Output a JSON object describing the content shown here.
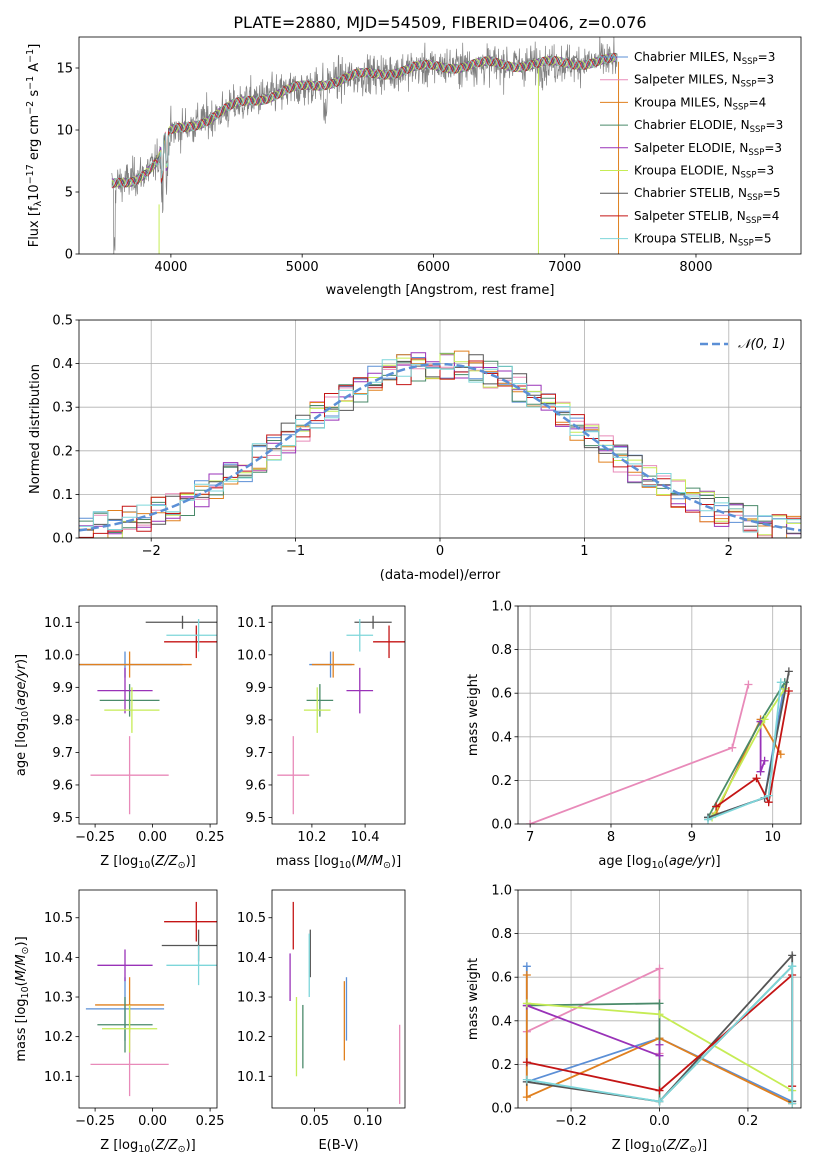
{
  "colors": {
    "chabrier_miles": "#5b8fd6",
    "salpeter_miles": "#e88ab9",
    "kroupa_miles": "#e0801f",
    "chabrier_elodie": "#4a8a6a",
    "salpeter_elodie": "#9932b8",
    "kroupa_elodie": "#c6ec55",
    "chabrier_stelib": "#555555",
    "salpeter_stelib": "#c41515",
    "kroupa_stelib": "#7ed6da",
    "gray_spectrum": "#808080",
    "normal_curve": "#5b8fd6"
  },
  "chart_data": [
    {
      "id": "spectrum",
      "type": "line",
      "title": "PLATE=2880, MJD=54509, FIBERID=0406, z=0.076",
      "xlabel": "wavelength [Angstrom, rest frame]",
      "ylabel": "Flux [f_λ 10⁻¹⁷ erg cm⁻² s⁻¹ A⁻¹]",
      "xlim": [
        3300,
        8800
      ],
      "ylim": [
        0,
        17.5
      ],
      "xticks": [
        "4000",
        "5000",
        "6000",
        "7000",
        "8000"
      ],
      "yticks": [
        "0",
        "5",
        "10",
        "15"
      ],
      "grid": false,
      "legend_position": "top-right",
      "continuum": {
        "x": [
          3550,
          3700,
          3800,
          3900,
          3950,
          4000,
          4100,
          4200,
          4300,
          4400,
          4500,
          4600,
          4800,
          5000,
          5200,
          5400,
          5600,
          5800,
          6000,
          6200,
          6400,
          6600,
          6800,
          7000,
          7200,
          7400
        ],
        "y": [
          5.5,
          6.0,
          6.6,
          7.4,
          9.1,
          9.8,
          10.2,
          10.6,
          11.0,
          11.5,
          12.0,
          12.4,
          12.9,
          13.4,
          13.9,
          14.3,
          14.6,
          14.9,
          15.1,
          15.2,
          15.3,
          15.3,
          15.3,
          15.4,
          15.5,
          15.6
        ]
      },
      "series": [
        {
          "name": "Chabrier MILES, N_SSP=3",
          "label": "Chabrier MILES, N",
          "sub": "SSP",
          "suffix": "=3"
        },
        {
          "name": "Salpeter MILES, N_SSP=3",
          "label": "Salpeter MILES, N",
          "sub": "SSP",
          "suffix": "=3"
        },
        {
          "name": "Kroupa MILES, N_SSP=4",
          "label": "Kroupa MILES, N",
          "sub": "SSP",
          "suffix": "=4"
        },
        {
          "name": "Chabrier ELODIE, N_SSP=3",
          "label": "Chabrier ELODIE, N",
          "sub": "SSP",
          "suffix": "=3"
        },
        {
          "name": "Salpeter ELODIE, N_SSP=3",
          "label": "Salpeter ELODIE, N",
          "sub": "SSP",
          "suffix": "=3"
        },
        {
          "name": "Kroupa ELODIE, N_SSP=3",
          "label": "Kroupa ELODIE, N",
          "sub": "SSP",
          "suffix": "=3"
        },
        {
          "name": "Chabrier STELIB, N_SSP=5",
          "label": "Chabrier STELIB, N",
          "sub": "SSP",
          "suffix": "=5"
        },
        {
          "name": "Salpeter STELIB, N_SSP=4",
          "label": "Salpeter STELIB, N",
          "sub": "SSP",
          "suffix": "=4"
        },
        {
          "name": "Kroupa STELIB, N_SSP=5",
          "label": "Kroupa STELIB, N",
          "sub": "SSP",
          "suffix": "=5"
        }
      ]
    },
    {
      "id": "residuals",
      "type": "line",
      "xlabel": "(data-model)/error",
      "ylabel": "Normed distribution",
      "xlim": [
        -2.5,
        2.5
      ],
      "ylim": [
        0,
        0.5
      ],
      "xticks": [
        "−2",
        "−1",
        "0",
        "1",
        "2"
      ],
      "yticks": [
        "0.0",
        "0.1",
        "0.2",
        "0.3",
        "0.4",
        "0.5"
      ],
      "grid": true,
      "legend_position": "top-right",
      "legend_label": "N(0,1)",
      "bins": 50,
      "model": "normal, mean 0, sigma 1"
    },
    {
      "id": "age_vs_Z",
      "type": "scatter",
      "xlabel": "Z [log₁₀(Z/Z☉)]",
      "ylabel": "age  [log₁₀(age/yr)]",
      "xlim": [
        -0.32,
        0.28
      ],
      "ylim": [
        9.48,
        10.15
      ],
      "xticks": [
        "−0.25",
        "0.00",
        "0.25"
      ],
      "yticks": [
        "9.5",
        "9.6",
        "9.7",
        "9.8",
        "9.9",
        "10.0",
        "10.1"
      ],
      "points": [
        {
          "x": -0.12,
          "y": 9.97,
          "xerr": 0.25,
          "yerr": 0.04
        },
        {
          "x": -0.1,
          "y": 9.63,
          "xerr": 0.17,
          "yerr": 0.12
        },
        {
          "x": -0.1,
          "y": 9.97,
          "xerr": 0.27,
          "yerr": 0.04
        },
        {
          "x": -0.1,
          "y": 9.86,
          "xerr": 0.13,
          "yerr": 0.05
        },
        {
          "x": -0.12,
          "y": 9.89,
          "xerr": 0.12,
          "yerr": 0.07
        },
        {
          "x": -0.09,
          "y": 9.83,
          "xerr": 0.12,
          "yerr": 0.07
        },
        {
          "x": 0.13,
          "y": 10.1,
          "xerr": 0.16,
          "yerr": 0.02
        },
        {
          "x": 0.19,
          "y": 10.04,
          "xerr": 0.14,
          "yerr": 0.05
        },
        {
          "x": 0.2,
          "y": 10.06,
          "xerr": 0.14,
          "yerr": 0.05
        }
      ]
    },
    {
      "id": "age_vs_mass",
      "type": "scatter",
      "xlabel": "mass [log₁₀(M/M☉)]",
      "ylabel": "",
      "xlim": [
        10.05,
        10.55
      ],
      "ylim": [
        9.48,
        10.15
      ],
      "xticks": [
        "10.2",
        "10.4"
      ],
      "yticks": [
        "9.5",
        "9.6",
        "9.7",
        "9.8",
        "9.9",
        "10.0",
        "10.1"
      ],
      "points": [
        {
          "x": 10.27,
          "y": 9.97,
          "xerr": 0.08,
          "yerr": 0.04
        },
        {
          "x": 10.13,
          "y": 9.63,
          "xerr": 0.06,
          "yerr": 0.12
        },
        {
          "x": 10.28,
          "y": 9.97,
          "xerr": 0.08,
          "yerr": 0.04
        },
        {
          "x": 10.23,
          "y": 9.86,
          "xerr": 0.05,
          "yerr": 0.05
        },
        {
          "x": 10.38,
          "y": 9.89,
          "xerr": 0.05,
          "yerr": 0.07
        },
        {
          "x": 10.22,
          "y": 9.83,
          "xerr": 0.05,
          "yerr": 0.07
        },
        {
          "x": 10.43,
          "y": 10.1,
          "xerr": 0.07,
          "yerr": 0.02
        },
        {
          "x": 10.49,
          "y": 10.04,
          "xerr": 0.06,
          "yerr": 0.05
        },
        {
          "x": 10.38,
          "y": 10.06,
          "xerr": 0.05,
          "yerr": 0.05
        }
      ]
    },
    {
      "id": "weight_vs_age",
      "type": "line",
      "xlabel": "age  [log₁₀(age/yr)]",
      "ylabel": "mass weight",
      "xlim": [
        6.85,
        10.35
      ],
      "ylim": [
        0,
        1
      ],
      "xticks": [
        "7",
        "8",
        "9",
        "10"
      ],
      "yticks": [
        "0.0",
        "0.2",
        "0.4",
        "0.6",
        "0.8",
        "1.0"
      ],
      "grid": true,
      "series": [
        {
          "x": [
            9.2,
            9.9,
            10.15
          ],
          "y": [
            0.03,
            0.12,
            0.65
          ]
        },
        {
          "x": [
            7.0,
            9.5,
            9.7
          ],
          "y": [
            0.0,
            0.35,
            0.64
          ]
        },
        {
          "x": [
            9.3,
            9.85,
            10.1
          ],
          "y": [
            0.05,
            0.48,
            0.32
          ]
        },
        {
          "x": [
            9.2,
            9.85,
            10.15
          ],
          "y": [
            0.03,
            0.47,
            0.65
          ]
        },
        {
          "x": [
            9.85,
            9.85,
            9.9
          ],
          "y": [
            0.47,
            0.24,
            0.29
          ]
        },
        {
          "x": [
            9.25,
            9.9,
            10.15
          ],
          "y": [
            0.03,
            0.48,
            0.62
          ]
        },
        {
          "x": [
            9.2,
            9.9,
            10.2
          ],
          "y": [
            0.03,
            0.12,
            0.7
          ]
        },
        {
          "x": [
            9.3,
            9.8,
            9.95,
            10.2
          ],
          "y": [
            0.08,
            0.21,
            0.1,
            0.61
          ]
        },
        {
          "x": [
            9.2,
            9.95,
            10.1
          ],
          "y": [
            0.02,
            0.13,
            0.65
          ]
        }
      ]
    },
    {
      "id": "mass_vs_Z",
      "type": "scatter",
      "xlabel": "Z [log₁₀(Z/Z☉)]",
      "ylabel": "mass [log₁₀(M/M☉)]",
      "xlim": [
        -0.32,
        0.28
      ],
      "ylim": [
        10.02,
        10.57
      ],
      "xticks": [
        "−0.25",
        "0.00",
        "0.25"
      ],
      "yticks": [
        "10.1",
        "10.2",
        "10.3",
        "10.4",
        "10.5"
      ],
      "points": [
        {
          "x": -0.12,
          "y": 10.27,
          "xerr": 0.17,
          "yerr": 0.08
        },
        {
          "x": -0.1,
          "y": 10.13,
          "xerr": 0.17,
          "yerr": 0.08
        },
        {
          "x": -0.1,
          "y": 10.28,
          "xerr": 0.15,
          "yerr": 0.07
        },
        {
          "x": -0.12,
          "y": 10.23,
          "xerr": 0.12,
          "yerr": 0.07
        },
        {
          "x": -0.12,
          "y": 10.38,
          "xerr": 0.12,
          "yerr": 0.04
        },
        {
          "x": -0.1,
          "y": 10.22,
          "xerr": 0.12,
          "yerr": 0.06
        },
        {
          "x": 0.2,
          "y": 10.43,
          "xerr": 0.16,
          "yerr": 0.04
        },
        {
          "x": 0.19,
          "y": 10.49,
          "xerr": 0.14,
          "yerr": 0.05
        },
        {
          "x": 0.2,
          "y": 10.38,
          "xerr": 0.14,
          "yerr": 0.05
        }
      ]
    },
    {
      "id": "mass_vs_ebv",
      "type": "scatter",
      "xlabel": "E(B-V)",
      "ylabel": "",
      "xlim": [
        0.01,
        0.135
      ],
      "ylim": [
        10.02,
        10.57
      ],
      "xticks": [
        "0.05",
        "0.10"
      ],
      "yticks": [
        "10.1",
        "10.2",
        "10.3",
        "10.4",
        "10.5"
      ],
      "points": [
        {
          "x": 0.08,
          "y": 10.27,
          "yerr": 0.08
        },
        {
          "x": 0.13,
          "y": 10.13,
          "yerr": 0.1
        },
        {
          "x": 0.078,
          "y": 10.24,
          "yerr": 0.1
        },
        {
          "x": 0.039,
          "y": 10.2,
          "yerr": 0.08
        },
        {
          "x": 0.027,
          "y": 10.35,
          "yerr": 0.06
        },
        {
          "x": 0.033,
          "y": 10.2,
          "yerr": 0.1
        },
        {
          "x": 0.046,
          "y": 10.41,
          "yerr": 0.06
        },
        {
          "x": 0.03,
          "y": 10.48,
          "yerr": 0.06
        },
        {
          "x": 0.045,
          "y": 10.38,
          "yerr": 0.08
        }
      ]
    },
    {
      "id": "weight_vs_Z",
      "type": "line",
      "xlabel": "Z [log₁₀(Z/Z☉)]",
      "ylabel": "mass weight",
      "xlim": [
        -0.32,
        0.32
      ],
      "ylim": [
        0,
        1
      ],
      "xticks": [
        "−0.2",
        "0.0",
        "0.2"
      ],
      "yticks": [
        "0.0",
        "0.2",
        "0.4",
        "0.6",
        "0.8",
        "1.0"
      ],
      "grid": true,
      "series": [
        {
          "x": [
            -0.3,
            -0.3,
            0.0,
            0.3
          ],
          "y": [
            0.65,
            0.12,
            0.32,
            0.03
          ]
        },
        {
          "x": [
            -0.3,
            0.0,
            0.0
          ],
          "y": [
            0.35,
            0.64,
            0.25
          ]
        },
        {
          "x": [
            -0.3,
            -0.3,
            0.0,
            0.3
          ],
          "y": [
            0.61,
            0.05,
            0.32,
            0.02
          ]
        },
        {
          "x": [
            -0.3,
            0.0,
            0.0,
            0.3
          ],
          "y": [
            0.47,
            0.48,
            0.03,
            0.65
          ]
        },
        {
          "x": [
            -0.3,
            0.0,
            0.0
          ],
          "y": [
            0.47,
            0.24,
            0.29
          ]
        },
        {
          "x": [
            -0.3,
            0.0,
            0.3
          ],
          "y": [
            0.48,
            0.43,
            0.08
          ]
        },
        {
          "x": [
            -0.3,
            0.0,
            0.3,
            0.3
          ],
          "y": [
            0.12,
            0.03,
            0.7,
            0.03
          ]
        },
        {
          "x": [
            -0.3,
            0.0,
            0.3,
            0.3
          ],
          "y": [
            0.21,
            0.08,
            0.61,
            0.1
          ]
        },
        {
          "x": [
            -0.3,
            0.0,
            0.3,
            0.3
          ],
          "y": [
            0.13,
            0.03,
            0.65,
            0.02
          ]
        }
      ]
    }
  ]
}
